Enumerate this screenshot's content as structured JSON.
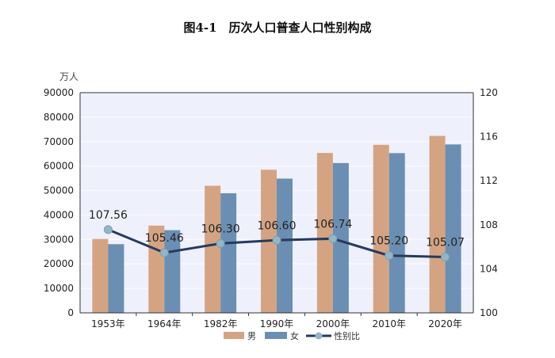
{
  "chart_data": {
    "type": "bar",
    "title": "图4-1　历次人口普查人口性别构成",
    "ylabel": "万人",
    "categories": [
      "1953年",
      "1964年",
      "1982年",
      "1990年",
      "2000年",
      "2010年",
      "2020年"
    ],
    "ylim": [
      0,
      90000
    ],
    "yticks": [
      0,
      10000,
      20000,
      30000,
      40000,
      50000,
      60000,
      70000,
      80000,
      90000
    ],
    "y2lim": [
      100,
      120
    ],
    "y2ticks": [
      100,
      104,
      108,
      112,
      116,
      120
    ],
    "grid": true,
    "legend_position": "bottom",
    "series": [
      {
        "name": "男",
        "type": "bar",
        "axis": "left",
        "color": "#d4a482",
        "values": [
          30190,
          35652,
          51944,
          58495,
          65355,
          68685,
          72334
        ]
      },
      {
        "name": "女",
        "type": "bar",
        "axis": "left",
        "color": "#6a8fb2",
        "values": [
          28070,
          33806,
          48874,
          54873,
          61228,
          65287,
          68844
        ]
      },
      {
        "name": "性别比",
        "type": "line",
        "axis": "right",
        "color": "#253a5e",
        "marker_color": "#93b6c6",
        "values": [
          107.56,
          105.46,
          106.3,
          106.6,
          106.74,
          105.2,
          105.07
        ],
        "labels": [
          "107.56",
          "105.46",
          "106.30",
          "106.60",
          "106.74",
          "105.20",
          "105.07"
        ]
      }
    ],
    "background_color": "#eef0fb"
  }
}
